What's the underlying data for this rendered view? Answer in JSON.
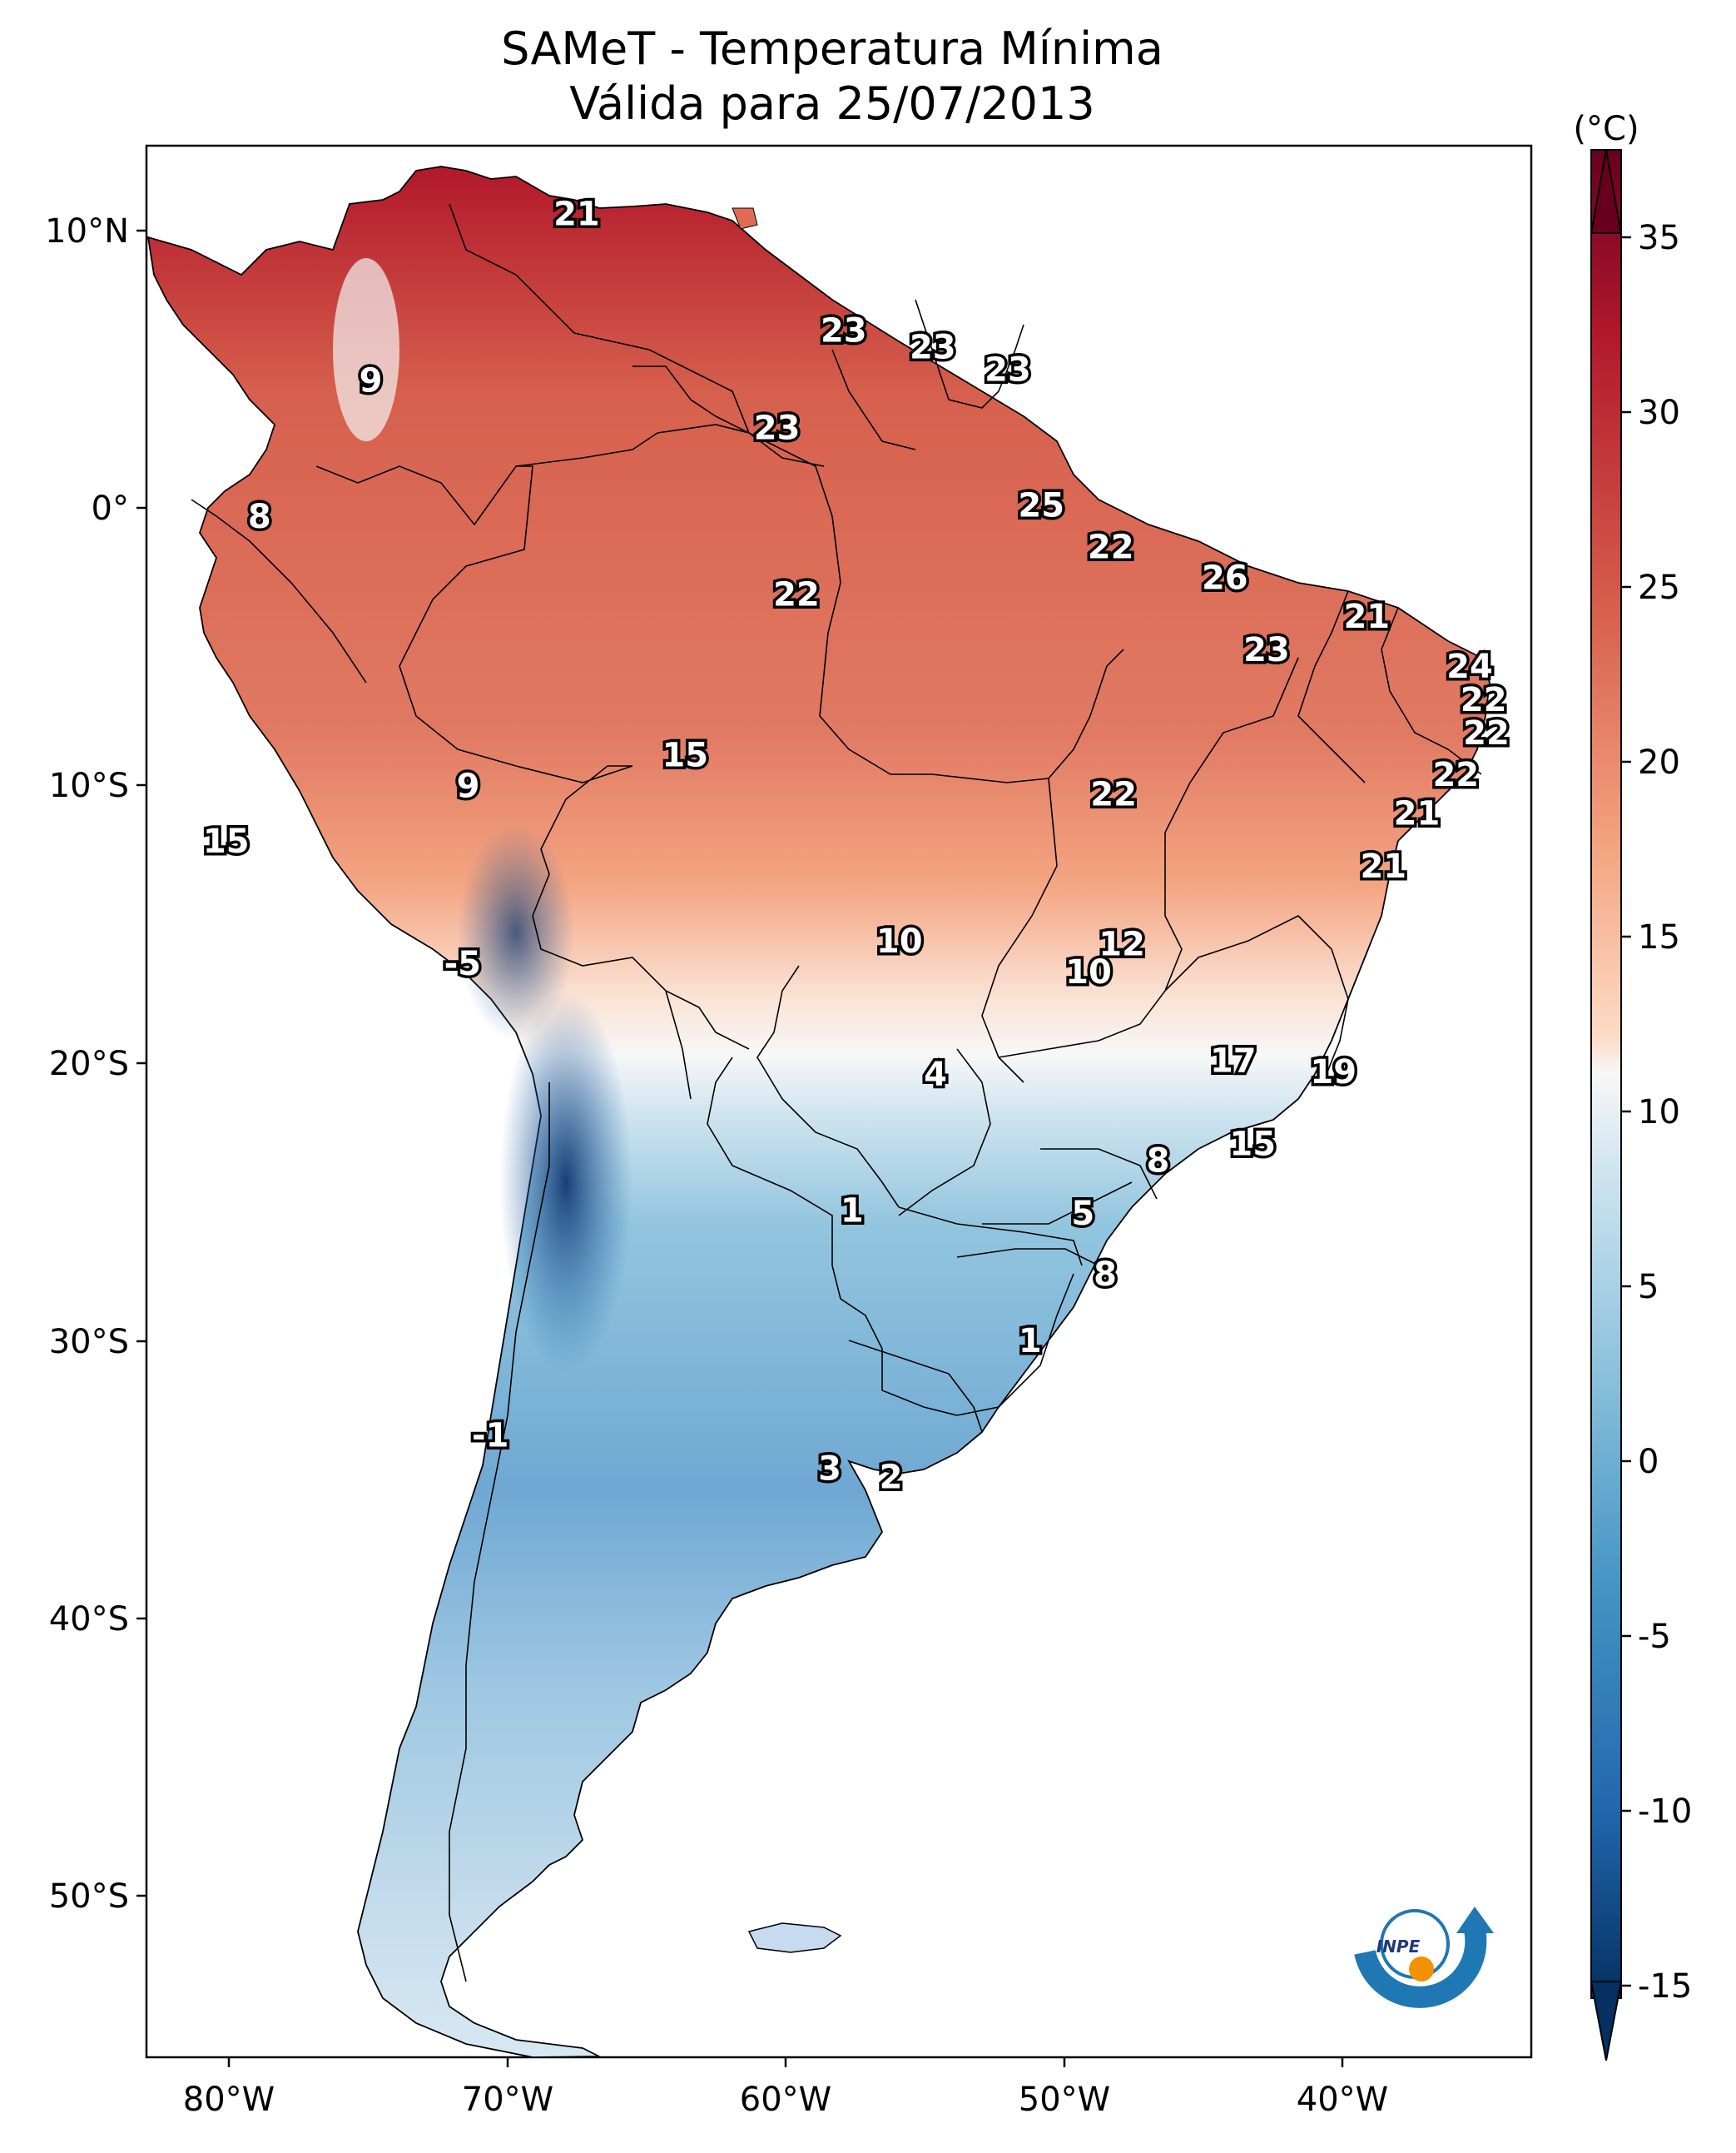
{
  "title": {
    "line1": "SAMeT - Temperatura Mínima",
    "line2": "Válida para 25/07/2013"
  },
  "map": {
    "lon_ticks": [
      "80°W",
      "70°W",
      "60°W",
      "50°W",
      "40°W"
    ],
    "lat_ticks": [
      "10°N",
      "0°",
      "10°S",
      "20°S",
      "30°S",
      "40°S",
      "50°S"
    ],
    "station_labels": [
      {
        "text": "21",
        "lon": -67.5,
        "lat": 10.6
      },
      {
        "text": "9",
        "lon": -74.9,
        "lat": 4.6
      },
      {
        "text": "23",
        "lon": -57.9,
        "lat": 6.4
      },
      {
        "text": "23",
        "lon": -54.7,
        "lat": 5.8
      },
      {
        "text": "23",
        "lon": -52.0,
        "lat": 5.0
      },
      {
        "text": "23",
        "lon": -60.3,
        "lat": 2.9
      },
      {
        "text": "8",
        "lon": -78.9,
        "lat": -0.3
      },
      {
        "text": "25",
        "lon": -50.8,
        "lat": 0.1
      },
      {
        "text": "22",
        "lon": -48.3,
        "lat": -1.4
      },
      {
        "text": "26",
        "lon": -44.2,
        "lat": -2.5
      },
      {
        "text": "22",
        "lon": -59.6,
        "lat": -3.1
      },
      {
        "text": "21",
        "lon": -39.1,
        "lat": -3.9
      },
      {
        "text": "23",
        "lon": -42.7,
        "lat": -5.1
      },
      {
        "text": "24",
        "lon": -35.4,
        "lat": -5.7
      },
      {
        "text": "22",
        "lon": -34.9,
        "lat": -6.9
      },
      {
        "text": "22",
        "lon": -34.8,
        "lat": -8.1
      },
      {
        "text": "22",
        "lon": -35.9,
        "lat": -9.6
      },
      {
        "text": "15",
        "lon": -63.6,
        "lat": -8.9
      },
      {
        "text": "9",
        "lon": -71.4,
        "lat": -10.0
      },
      {
        "text": "22",
        "lon": -48.2,
        "lat": -10.3
      },
      {
        "text": "21",
        "lon": -37.3,
        "lat": -11.0
      },
      {
        "text": "15",
        "lon": -80.1,
        "lat": -12.0
      },
      {
        "text": "21",
        "lon": -38.5,
        "lat": -12.9
      },
      {
        "text": "10",
        "lon": -55.9,
        "lat": -15.6
      },
      {
        "text": "12",
        "lon": -47.9,
        "lat": -15.7
      },
      {
        "text": "-5",
        "lon": -71.6,
        "lat": -16.4
      },
      {
        "text": "10",
        "lon": -49.1,
        "lat": -16.7
      },
      {
        "text": "17",
        "lon": -43.9,
        "lat": -19.9
      },
      {
        "text": "19",
        "lon": -40.3,
        "lat": -20.3
      },
      {
        "text": "4",
        "lon": -54.6,
        "lat": -20.4
      },
      {
        "text": "15",
        "lon": -43.2,
        "lat": -22.9
      },
      {
        "text": "8",
        "lon": -46.6,
        "lat": -23.5
      },
      {
        "text": "1",
        "lon": -57.6,
        "lat": -25.3
      },
      {
        "text": "5",
        "lon": -49.3,
        "lat": -25.4
      },
      {
        "text": "8",
        "lon": -48.5,
        "lat": -27.6
      },
      {
        "text": "1",
        "lon": -51.2,
        "lat": -30.0
      },
      {
        "text": "-1",
        "lon": -70.6,
        "lat": -33.4
      },
      {
        "text": "3",
        "lon": -58.4,
        "lat": -34.6
      },
      {
        "text": "2",
        "lon": -56.2,
        "lat": -34.9
      }
    ]
  },
  "colorbar": {
    "unit": "(°C)",
    "ticks": [
      "35",
      "30",
      "25",
      "20",
      "15",
      "10",
      "5",
      "0",
      "-5",
      "-10",
      "-15"
    ]
  },
  "logo": {
    "text": "INPE"
  },
  "colors": {
    "ocean": "#ffffff",
    "cold": "#053061",
    "warm": "#67001f",
    "neutral": "#f7f7f7"
  }
}
